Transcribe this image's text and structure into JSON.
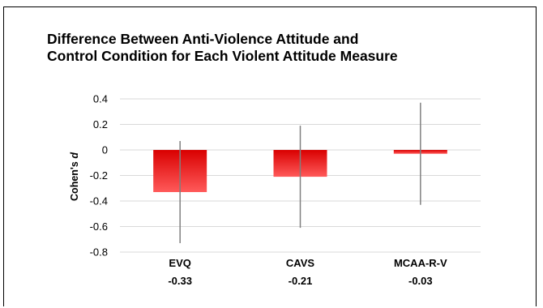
{
  "chart_data": {
    "type": "bar",
    "title_lines": [
      "Difference Between Anti-Violence Attitude and",
      "Control Condition for Each Violent Attitude Measure"
    ],
    "ylabel_prefix": "Cohen's ",
    "ylabel_var": "d",
    "xlabel": "",
    "categories": [
      "EVQ",
      "CAVS",
      "MCAA-R-V"
    ],
    "value_labels": [
      "-0.33",
      "-0.21",
      "-0.03"
    ],
    "values": [
      -0.33,
      -0.21,
      -0.03
    ],
    "error_low": [
      -0.73,
      -0.61,
      -0.43
    ],
    "error_high": [
      0.07,
      0.19,
      0.37
    ],
    "ylim": [
      -0.8,
      0.4
    ],
    "yticks": [
      0.4,
      0.2,
      0,
      -0.2,
      -0.4,
      -0.6,
      -0.8
    ],
    "ytick_labels": [
      "0.4",
      "0.2",
      "0",
      "-0.2",
      "-0.4",
      "-0.6",
      "-0.8"
    ],
    "grid": true,
    "colors": {
      "bar_top": "#d90000",
      "bar_bottom": "#ff5a5a",
      "error": "#7f7f7f",
      "grid": "#d9d9d9"
    }
  }
}
